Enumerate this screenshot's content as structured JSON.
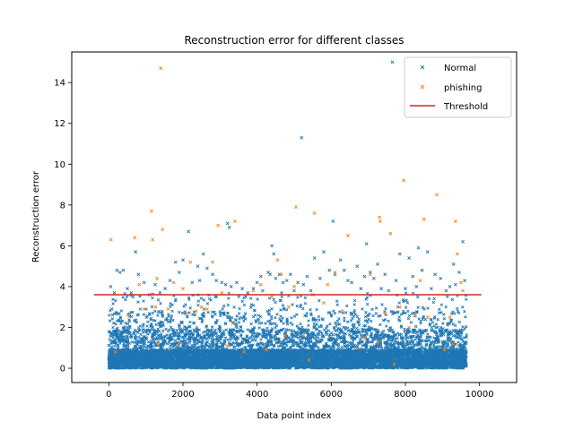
{
  "chart_data": {
    "type": "scatter",
    "title": "Reconstruction error for different classes",
    "xlabel": "Data point index",
    "ylabel": "Reconstruction error",
    "xlim": [
      -1000,
      11000
    ],
    "ylim": [
      -0.7,
      15.5
    ],
    "xticks": [
      0,
      2000,
      4000,
      6000,
      8000,
      10000
    ],
    "yticks": [
      0,
      2,
      4,
      6,
      8,
      10,
      12,
      14
    ],
    "grid": false,
    "legend_position": "top-right",
    "n_points_approx": 9650,
    "series": [
      {
        "name": "Normal",
        "color": "#1f77b4",
        "marker": "x",
        "outliers": [
          [
            50,
            4.0
          ],
          [
            80,
            2.9
          ],
          [
            150,
            3.7
          ],
          [
            220,
            4.8
          ],
          [
            300,
            4.7
          ],
          [
            390,
            4.8
          ],
          [
            500,
            3.9
          ],
          [
            650,
            3.5
          ],
          [
            720,
            5.7
          ],
          [
            800,
            4.6
          ],
          [
            950,
            4.2
          ],
          [
            1100,
            3.6
          ],
          [
            1250,
            4.1
          ],
          [
            1380,
            3.7
          ],
          [
            1520,
            3.9
          ],
          [
            1650,
            4.3
          ],
          [
            1800,
            5.2
          ],
          [
            1900,
            4.7
          ],
          [
            2000,
            5.3
          ],
          [
            2150,
            6.7
          ],
          [
            2250,
            4.2
          ],
          [
            2400,
            5.0
          ],
          [
            2450,
            4.3
          ],
          [
            2550,
            5.6
          ],
          [
            2650,
            4.9
          ],
          [
            2800,
            4.6
          ],
          [
            2900,
            4.3
          ],
          [
            3050,
            4.2
          ],
          [
            3150,
            4.1
          ],
          [
            3200,
            7.1
          ],
          [
            3250,
            6.9
          ],
          [
            3300,
            4.0
          ],
          [
            3450,
            4.2
          ],
          [
            3600,
            3.9
          ],
          [
            3750,
            3.7
          ],
          [
            3900,
            3.9
          ],
          [
            4000,
            4.2
          ],
          [
            4100,
            4.5
          ],
          [
            4150,
            3.8
          ],
          [
            4300,
            4.7
          ],
          [
            4350,
            4.6
          ],
          [
            4400,
            6.0
          ],
          [
            4450,
            5.6
          ],
          [
            4500,
            4.4
          ],
          [
            4600,
            4.6
          ],
          [
            4700,
            4.2
          ],
          [
            4800,
            4.3
          ],
          [
            4900,
            4.6
          ],
          [
            5000,
            3.8
          ],
          [
            5100,
            4.2
          ],
          [
            5200,
            11.3
          ],
          [
            5250,
            4.1
          ],
          [
            5350,
            4.5
          ],
          [
            5450,
            3.8
          ],
          [
            5550,
            5.4
          ],
          [
            5700,
            4.4
          ],
          [
            5800,
            5.7
          ],
          [
            5950,
            4.8
          ],
          [
            6050,
            7.2
          ],
          [
            6100,
            4.6
          ],
          [
            6250,
            5.3
          ],
          [
            6350,
            4.8
          ],
          [
            6450,
            4.3
          ],
          [
            6550,
            4.2
          ],
          [
            6700,
            5.0
          ],
          [
            6800,
            3.9
          ],
          [
            6900,
            4.5
          ],
          [
            6950,
            6.1
          ],
          [
            7050,
            4.7
          ],
          [
            7150,
            4.4
          ],
          [
            7250,
            5.1
          ],
          [
            7350,
            3.9
          ],
          [
            7450,
            4.6
          ],
          [
            7550,
            3.8
          ],
          [
            7650,
            15.0
          ],
          [
            7750,
            4.3
          ],
          [
            7850,
            5.6
          ],
          [
            8000,
            3.9
          ],
          [
            8100,
            5.4
          ],
          [
            8200,
            4.5
          ],
          [
            8300,
            4.0
          ],
          [
            8350,
            5.9
          ],
          [
            8450,
            4.8
          ],
          [
            8600,
            5.7
          ],
          [
            8700,
            3.9
          ],
          [
            8800,
            4.6
          ],
          [
            8950,
            4.4
          ],
          [
            9100,
            3.8
          ],
          [
            9200,
            4.0
          ],
          [
            9300,
            5.1
          ],
          [
            9350,
            4.1
          ],
          [
            9450,
            4.7
          ],
          [
            9550,
            6.2
          ],
          [
            9600,
            4.3
          ]
        ]
      },
      {
        "name": "phishing",
        "color": "#ff7f0e",
        "marker": "x",
        "points": [
          [
            60,
            6.3
          ],
          [
            180,
            0.8
          ],
          [
            520,
            2.6
          ],
          [
            700,
            6.4
          ],
          [
            820,
            4.1
          ],
          [
            950,
            2.9
          ],
          [
            1150,
            7.7
          ],
          [
            1180,
            6.3
          ],
          [
            1260,
            3.0
          ],
          [
            1300,
            4.4
          ],
          [
            1330,
            1.2
          ],
          [
            1400,
            14.7
          ],
          [
            1450,
            6.8
          ],
          [
            1600,
            2.9
          ],
          [
            1750,
            4.2
          ],
          [
            1900,
            1.2
          ],
          [
            2000,
            3.9
          ],
          [
            2100,
            2.7
          ],
          [
            2200,
            5.2
          ],
          [
            2350,
            2.8
          ],
          [
            2500,
            3.0
          ],
          [
            2650,
            2.9
          ],
          [
            2800,
            5.2
          ],
          [
            2950,
            7.0
          ],
          [
            3050,
            3.7
          ],
          [
            3200,
            1.1
          ],
          [
            3350,
            2.2
          ],
          [
            3400,
            7.2
          ],
          [
            3650,
            0.8
          ],
          [
            3900,
            3.8
          ],
          [
            4100,
            4.1
          ],
          [
            4250,
            0.9
          ],
          [
            4400,
            3.5
          ],
          [
            4550,
            5.3
          ],
          [
            4650,
            4.6
          ],
          [
            4750,
            1.6
          ],
          [
            4850,
            3.0
          ],
          [
            5000,
            4.0
          ],
          [
            5050,
            7.9
          ],
          [
            5250,
            1.6
          ],
          [
            5400,
            0.4
          ],
          [
            5500,
            3.6
          ],
          [
            5550,
            7.6
          ],
          [
            5800,
            3.2
          ],
          [
            5900,
            4.1
          ],
          [
            6100,
            4.7
          ],
          [
            6300,
            2.8
          ],
          [
            6450,
            6.5
          ],
          [
            6700,
            1.0
          ],
          [
            6900,
            1.5
          ],
          [
            7050,
            4.6
          ],
          [
            7250,
            1.3
          ],
          [
            7300,
            7.4
          ],
          [
            7320,
            7.2
          ],
          [
            7450,
            2.7
          ],
          [
            7600,
            6.6
          ],
          [
            7700,
            0.2
          ],
          [
            7850,
            3.0
          ],
          [
            7950,
            9.2
          ],
          [
            8100,
            2.0
          ],
          [
            8250,
            2.6
          ],
          [
            8400,
            4.3
          ],
          [
            8500,
            7.3
          ],
          [
            8600,
            2.5
          ],
          [
            8850,
            8.5
          ],
          [
            9050,
            0.9
          ],
          [
            9200,
            2.5
          ],
          [
            9300,
            1.2
          ],
          [
            9350,
            7.2
          ],
          [
            9400,
            5.6
          ],
          [
            9500,
            4.2
          ],
          [
            9550,
            3.8
          ]
        ]
      },
      {
        "name": "Threshold",
        "color": "#d62728",
        "type": "hline",
        "y": 3.6,
        "x_range": [
          -400,
          10050
        ]
      }
    ]
  }
}
